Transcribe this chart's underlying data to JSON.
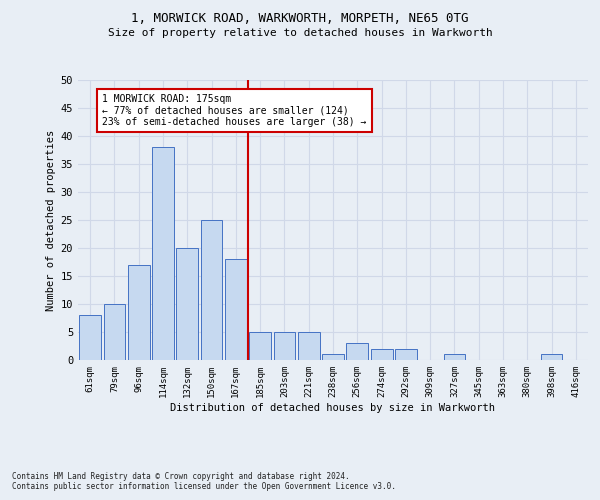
{
  "title1": "1, MORWICK ROAD, WARKWORTH, MORPETH, NE65 0TG",
  "title2": "Size of property relative to detached houses in Warkworth",
  "xlabel": "Distribution of detached houses by size in Warkworth",
  "ylabel": "Number of detached properties",
  "bar_labels": [
    "61sqm",
    "79sqm",
    "96sqm",
    "114sqm",
    "132sqm",
    "150sqm",
    "167sqm",
    "185sqm",
    "203sqm",
    "221sqm",
    "238sqm",
    "256sqm",
    "274sqm",
    "292sqm",
    "309sqm",
    "327sqm",
    "345sqm",
    "363sqm",
    "380sqm",
    "398sqm",
    "416sqm"
  ],
  "bar_values": [
    8,
    10,
    17,
    38,
    20,
    25,
    18,
    5,
    5,
    5,
    1,
    3,
    2,
    2,
    0,
    1,
    0,
    0,
    0,
    1,
    0
  ],
  "bar_color": "#c6d9f0",
  "bar_edge_color": "#4472c4",
  "vline_x": 6.5,
  "vline_color": "#cc0000",
  "annotation_line1": "1 MORWICK ROAD: 175sqm",
  "annotation_line2": "← 77% of detached houses are smaller (124)",
  "annotation_line3": "23% of semi-detached houses are larger (38) →",
  "annotation_box_color": "#ffffff",
  "annotation_box_edge": "#cc0000",
  "ylim": [
    0,
    50
  ],
  "yticks": [
    0,
    5,
    10,
    15,
    20,
    25,
    30,
    35,
    40,
    45,
    50
  ],
  "grid_color": "#d0d8e8",
  "footnote1": "Contains HM Land Registry data © Crown copyright and database right 2024.",
  "footnote2": "Contains public sector information licensed under the Open Government Licence v3.0.",
  "bg_color": "#e8eef5"
}
